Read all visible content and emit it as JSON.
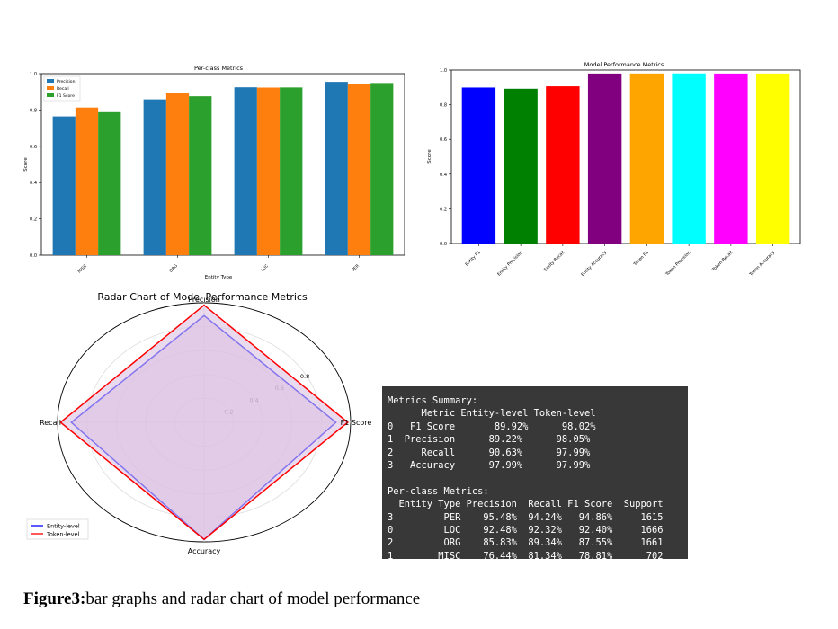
{
  "colors": {
    "precision": "#1f77b4",
    "recall": "#ff7f0e",
    "f1": "#2ca02c",
    "entity_line": "#0000ff",
    "token_line": "#ff0000",
    "radar_fill": "#dcc2e2",
    "console_bg": "#383838"
  },
  "caption": {
    "label": "Figure3:",
    "text": "bar graphs and radar chart of model performance"
  },
  "console": {
    "lines": [
      "Metrics Summary:",
      "      Metric Entity-level Token-level",
      "0   F1 Score       89.92%      98.02%",
      "1  Precision      89.22%      98.05%",
      "2     Recall      90.63%      97.99%",
      "3   Accuracy      97.99%      97.99%",
      "",
      "Per-class Metrics:",
      "  Entity Type Precision  Recall F1 Score  Support",
      "3         PER    95.48%  94.24%   94.86%     1615",
      "0         LOC    92.48%  92.32%   92.40%     1666",
      "2         ORG    85.83%  89.34%   87.55%     1661",
      "1        MISC    76.44%  81.34%   78.81%      702"
    ]
  },
  "chart_data": [
    {
      "type": "bar",
      "title": "Per-class Metrics",
      "xlabel": "Entity Type",
      "ylabel": "Score",
      "ylim": [
        0,
        1.0
      ],
      "yticks": [
        "0.0",
        "0.2",
        "0.4",
        "0.6",
        "0.8",
        "1.0"
      ],
      "categories": [
        "MISC",
        "ORG",
        "LOC",
        "PER"
      ],
      "series": [
        {
          "name": "Precision",
          "values": [
            0.7644,
            0.8583,
            0.9248,
            0.9548
          ]
        },
        {
          "name": "Recall",
          "values": [
            0.8134,
            0.8934,
            0.9232,
            0.9424
          ]
        },
        {
          "name": "F1 Score",
          "values": [
            0.7881,
            0.8755,
            0.924,
            0.9486
          ]
        }
      ],
      "legend": "top-left",
      "grid": false
    },
    {
      "type": "bar",
      "title": "Model Performance Metrics",
      "xlabel": "",
      "ylabel": "Score",
      "ylim": [
        0,
        1.0
      ],
      "yticks": [
        "0.0",
        "0.2",
        "0.4",
        "0.6",
        "0.8",
        "1.0"
      ],
      "categories": [
        "Entity F1",
        "Entity Precision",
        "Entity Recall",
        "Entity Accuracy",
        "Token F1",
        "Token Precision",
        "Token Recall",
        "Token Accuracy"
      ],
      "values": [
        0.8992,
        0.8922,
        0.9063,
        0.9799,
        0.9802,
        0.9805,
        0.9799,
        0.9799
      ],
      "bar_colors": [
        "#0000ff",
        "#008000",
        "#ff0000",
        "#800080",
        "#ffa500",
        "#00ffff",
        "#ff00ff",
        "#ffff00"
      ],
      "grid": false
    },
    {
      "type": "radar",
      "title": "Radar Chart of Model Performance Metrics",
      "axes": [
        "Precision",
        "F1 Score",
        "Accuracy",
        "Recall"
      ],
      "rticks": [
        "0.2",
        "0.4",
        "0.6",
        "0.8"
      ],
      "series": [
        {
          "name": "Entity-level",
          "values": [
            0.8922,
            0.8992,
            0.9799,
            0.9063
          ]
        },
        {
          "name": "Token-level",
          "values": [
            0.9805,
            0.9802,
            0.9799,
            0.9799
          ]
        }
      ],
      "legend": "lower-left"
    }
  ]
}
